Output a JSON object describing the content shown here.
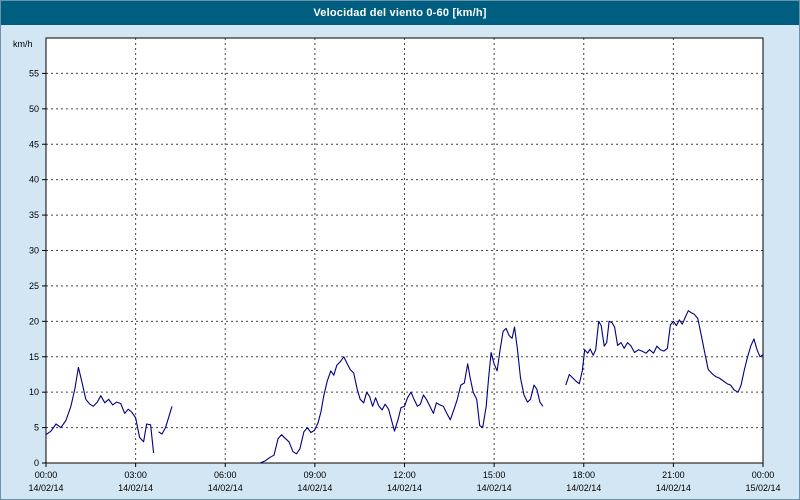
{
  "title": "Velocidad del viento 0-60 [km/h]",
  "colors": {
    "background": "#d3e6f3",
    "title_bar": "#005f80",
    "title_text": "#ffffff",
    "plot_background": "#ffffff",
    "grid": "#444444",
    "axis": "#000000",
    "line": "#000080"
  },
  "chart_data": {
    "type": "line",
    "title": "Velocidad del viento 0-60 [km/h]",
    "ylabel": "km/h",
    "xlabel": "",
    "ylim": [
      0,
      60
    ],
    "grid": true,
    "legend": "none",
    "y_ticks": [
      0,
      5,
      10,
      15,
      20,
      25,
      30,
      35,
      40,
      45,
      50,
      55
    ],
    "x_tick_interval_minutes": 180,
    "x_range_minutes": [
      0,
      1440
    ],
    "x_ticks": [
      {
        "time": "00:00",
        "date": "14/02/14"
      },
      {
        "time": "03:00",
        "date": "14/02/14"
      },
      {
        "time": "06:00",
        "date": "14/02/14"
      },
      {
        "time": "09:00",
        "date": "14/02/14"
      },
      {
        "time": "12:00",
        "date": "14/02/14"
      },
      {
        "time": "15:00",
        "date": "14/02/14"
      },
      {
        "time": "18:00",
        "date": "14/02/14"
      },
      {
        "time": "21:00",
        "date": "14/02/14"
      },
      {
        "time": "00:00",
        "date": "15/02/14"
      }
    ],
    "line_color": "#000080",
    "series": [
      {
        "name": "Velocidad del viento (km/h)",
        "x_unit": "minutes_since_00:00_14/02/14",
        "segments": [
          [
            [
              0,
              4
            ],
            [
              10,
              4.5
            ],
            [
              20,
              5.5
            ],
            [
              30,
              5
            ],
            [
              40,
              6
            ],
            [
              50,
              8
            ],
            [
              58,
              10.5
            ],
            [
              65,
              13.5
            ],
            [
              72,
              11.5
            ],
            [
              80,
              9
            ],
            [
              88,
              8.3
            ],
            [
              95,
              8
            ],
            [
              103,
              8.6
            ],
            [
              110,
              9.5
            ],
            [
              118,
              8.5
            ],
            [
              126,
              9
            ],
            [
              134,
              8.2
            ],
            [
              142,
              8.6
            ],
            [
              150,
              8.4
            ],
            [
              158,
              7
            ],
            [
              165,
              7.6
            ],
            [
              172,
              7.2
            ],
            [
              180,
              6.4
            ],
            [
              188,
              3.6
            ],
            [
              196,
              3
            ],
            [
              202,
              5.5
            ],
            [
              210,
              5.4
            ],
            [
              216,
              1.4
            ]
          ],
          [
            [
              226,
              4.4
            ],
            [
              233,
              4.1
            ],
            [
              240,
              5
            ],
            [
              247,
              6.6
            ],
            [
              253,
              8
            ]
          ],
          [
            [
              430,
              0
            ],
            [
              440,
              0.3
            ],
            [
              450,
              0.8
            ],
            [
              458,
              1.1
            ],
            [
              466,
              3.4
            ],
            [
              473,
              4
            ],
            [
              480,
              3.5
            ],
            [
              488,
              3
            ],
            [
              496,
              1.6
            ],
            [
              503,
              1.3
            ],
            [
              510,
              2
            ],
            [
              518,
              4.4
            ],
            [
              525,
              5
            ],
            [
              532,
              4.3
            ],
            [
              539,
              4.6
            ],
            [
              546,
              5.6
            ],
            [
              552,
              7.2
            ],
            [
              558,
              9.5
            ],
            [
              565,
              11.6
            ],
            [
              572,
              13
            ],
            [
              578,
              12.4
            ],
            [
              584,
              13.8
            ],
            [
              591,
              14.3
            ],
            [
              598,
              15
            ],
            [
              605,
              14
            ],
            [
              611,
              13.2
            ],
            [
              618,
              12.7
            ],
            [
              625,
              10.4
            ],
            [
              631,
              9
            ],
            [
              638,
              8.5
            ],
            [
              644,
              10
            ],
            [
              650,
              9.4
            ],
            [
              656,
              8
            ],
            [
              662,
              9.2
            ],
            [
              668,
              8.1
            ],
            [
              675,
              7.5
            ],
            [
              681,
              8.3
            ],
            [
              688,
              7.6
            ],
            [
              694,
              6
            ],
            [
              700,
              4.5
            ],
            [
              707,
              6.1
            ],
            [
              713,
              7.8
            ],
            [
              720,
              8
            ],
            [
              726,
              9.2
            ],
            [
              733,
              10
            ],
            [
              739,
              9
            ],
            [
              746,
              8
            ],
            [
              752,
              8.3
            ],
            [
              758,
              9.6
            ],
            [
              764,
              9
            ],
            [
              771,
              8
            ],
            [
              778,
              7
            ],
            [
              784,
              8.5
            ],
            [
              791,
              8.2
            ],
            [
              798,
              8
            ],
            [
              805,
              7
            ],
            [
              812,
              6.1
            ],
            [
              819,
              7.5
            ],
            [
              826,
              9
            ],
            [
              833,
              11
            ],
            [
              840,
              11.3
            ],
            [
              847,
              14
            ],
            [
              852,
              12
            ],
            [
              858,
              10
            ],
            [
              865,
              9
            ],
            [
              871,
              5.3
            ],
            [
              877,
              5
            ],
            [
              884,
              8
            ],
            [
              889,
              12
            ],
            [
              894,
              15.6
            ],
            [
              900,
              14
            ],
            [
              906,
              13
            ],
            [
              912,
              16
            ],
            [
              918,
              18.6
            ],
            [
              924,
              19
            ],
            [
              930,
              18
            ],
            [
              936,
              17.6
            ],
            [
              941,
              19.2
            ],
            [
              947,
              16
            ],
            [
              953,
              12
            ],
            [
              960,
              9.6
            ],
            [
              967,
              8.6
            ],
            [
              973,
              9
            ],
            [
              980,
              11
            ],
            [
              986,
              10.4
            ],
            [
              992,
              8.6
            ],
            [
              998,
              8
            ]
          ],
          [
            [
              1044,
              11
            ],
            [
              1051,
              12.5
            ],
            [
              1058,
              12
            ],
            [
              1065,
              11.5
            ],
            [
              1071,
              11.2
            ],
            [
              1077,
              13
            ],
            [
              1082,
              16
            ],
            [
              1088,
              15.5
            ],
            [
              1093,
              16.1
            ],
            [
              1099,
              15.2
            ],
            [
              1104,
              16
            ],
            [
              1110,
              20
            ],
            [
              1115,
              19.4
            ],
            [
              1121,
              16.5
            ],
            [
              1126,
              17
            ],
            [
              1131,
              20
            ],
            [
              1137,
              19.8
            ],
            [
              1142,
              19.2
            ],
            [
              1148,
              16.6
            ],
            [
              1155,
              17
            ],
            [
              1161,
              16.2
            ],
            [
              1168,
              17
            ],
            [
              1175,
              16.5
            ],
            [
              1182,
              15.6
            ],
            [
              1190,
              16
            ],
            [
              1197,
              15.8
            ],
            [
              1205,
              15.5
            ],
            [
              1212,
              16
            ],
            [
              1220,
              15.5
            ],
            [
              1227,
              16.5
            ],
            [
              1234,
              16
            ],
            [
              1241,
              15.8
            ],
            [
              1248,
              16.2
            ],
            [
              1254,
              19.5
            ],
            [
              1260,
              20
            ],
            [
              1266,
              19.4
            ],
            [
              1272,
              20.2
            ],
            [
              1278,
              19.6
            ],
            [
              1284,
              20.6
            ],
            [
              1290,
              21.5
            ],
            [
              1296,
              21.2
            ],
            [
              1302,
              21
            ],
            [
              1309,
              20.4
            ],
            [
              1316,
              18
            ],
            [
              1323,
              15.6
            ],
            [
              1330,
              13.2
            ],
            [
              1338,
              12.6
            ],
            [
              1345,
              12.2
            ],
            [
              1352,
              12
            ],
            [
              1360,
              11.6
            ],
            [
              1368,
              11.2
            ],
            [
              1375,
              11
            ],
            [
              1382,
              10.3
            ],
            [
              1390,
              10
            ],
            [
              1396,
              11
            ],
            [
              1402,
              13
            ],
            [
              1409,
              15
            ],
            [
              1416,
              16.6
            ],
            [
              1422,
              17.5
            ],
            [
              1428,
              16
            ],
            [
              1434,
              15
            ],
            [
              1440,
              15.3
            ]
          ]
        ]
      }
    ]
  }
}
